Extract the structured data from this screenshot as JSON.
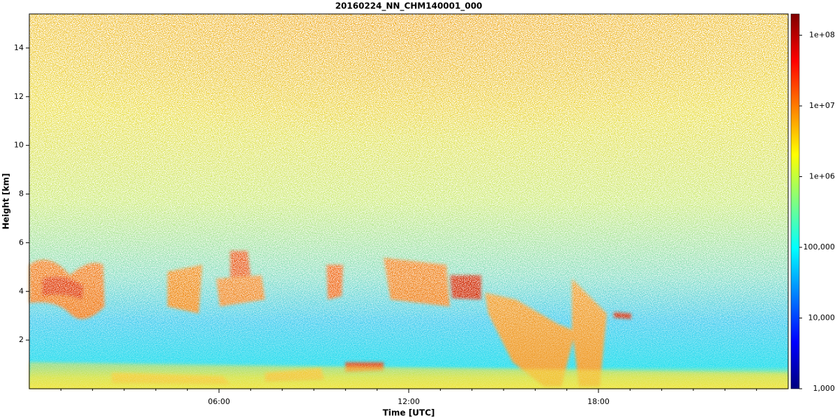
{
  "chart_data": {
    "type": "heatmap",
    "title": "20160224_NN_CHM140001_000",
    "x_label": "Time [UTC]",
    "y_label": "Height [km]",
    "xlim": [
      0,
      24
    ],
    "xticks": [
      {
        "value": 6,
        "label": "06:00"
      },
      {
        "value": 12,
        "label": "12:00"
      },
      {
        "value": 18,
        "label": "18:00"
      }
    ],
    "xminorticks": [
      1,
      2,
      3,
      4,
      5,
      7,
      8,
      9,
      10,
      11,
      13,
      14,
      15,
      16,
      17,
      19,
      20,
      21,
      22,
      23
    ],
    "ylim": [
      0,
      15.4
    ],
    "yticks": [
      2,
      4,
      6,
      8,
      10,
      12,
      14
    ],
    "colormap": "jet",
    "color_log_scale": true,
    "clim": [
      1000,
      200000000
    ],
    "cticks": [
      {
        "value": 1000,
        "label": "1,000"
      },
      {
        "value": 10000,
        "label": "10,000"
      },
      {
        "value": 100000,
        "label": "100,000"
      },
      {
        "value": 1000000,
        "label": "1e+06"
      },
      {
        "value": 10000000,
        "label": "1e+07"
      },
      {
        "value": 100000000,
        "label": "1e+08"
      }
    ]
  }
}
